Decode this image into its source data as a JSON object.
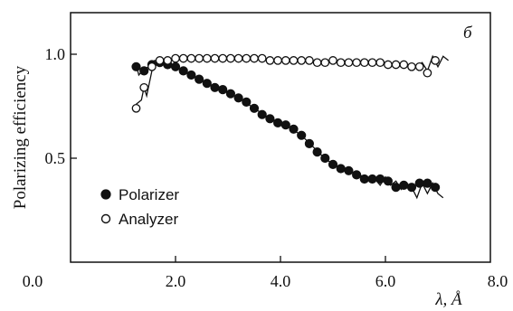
{
  "chart_data": {
    "type": "scatter",
    "panel_label": "б",
    "ylabel": "Polarizing efficiency",
    "xlabel_symbol": "λ, Å",
    "xlim": [
      0.0,
      8.0
    ],
    "ylim": [
      0.0,
      1.2
    ],
    "x_ticks": [
      0.0,
      2.0,
      4.0,
      6.0,
      8.0
    ],
    "x_tick_labels": [
      "0.0",
      "2.0",
      "4.0",
      "6.0",
      "8.0"
    ],
    "y_ticks": [
      0.5,
      1.0
    ],
    "y_tick_labels": [
      "0.5",
      "1.0"
    ],
    "legend_position": "bottom-left",
    "series": [
      {
        "name": "Polarizer",
        "marker": "filled-circle",
        "points": [
          [
            1.25,
            0.94
          ],
          [
            1.4,
            0.92
          ],
          [
            1.55,
            0.95
          ],
          [
            1.7,
            0.96
          ],
          [
            1.85,
            0.95
          ],
          [
            2.0,
            0.94
          ],
          [
            2.15,
            0.92
          ],
          [
            2.3,
            0.9
          ],
          [
            2.45,
            0.88
          ],
          [
            2.6,
            0.86
          ],
          [
            2.75,
            0.84
          ],
          [
            2.9,
            0.83
          ],
          [
            3.05,
            0.81
          ],
          [
            3.2,
            0.79
          ],
          [
            3.35,
            0.77
          ],
          [
            3.5,
            0.74
          ],
          [
            3.65,
            0.71
          ],
          [
            3.8,
            0.69
          ],
          [
            3.95,
            0.67
          ],
          [
            4.1,
            0.66
          ],
          [
            4.25,
            0.64
          ],
          [
            4.4,
            0.61
          ],
          [
            4.55,
            0.57
          ],
          [
            4.7,
            0.53
          ],
          [
            4.85,
            0.5
          ],
          [
            5.0,
            0.47
          ],
          [
            5.15,
            0.45
          ],
          [
            5.3,
            0.44
          ],
          [
            5.45,
            0.42
          ],
          [
            5.6,
            0.4
          ],
          [
            5.75,
            0.4
          ],
          [
            5.9,
            0.4
          ],
          [
            6.05,
            0.39
          ],
          [
            6.2,
            0.36
          ],
          [
            6.35,
            0.37
          ],
          [
            6.5,
            0.36
          ],
          [
            6.65,
            0.38
          ],
          [
            6.8,
            0.38
          ],
          [
            6.95,
            0.36
          ]
        ],
        "curve": [
          [
            1.25,
            0.95
          ],
          [
            1.3,
            0.9
          ],
          [
            1.4,
            0.93
          ],
          [
            1.5,
            0.94
          ],
          [
            1.6,
            0.96
          ],
          [
            1.7,
            0.96
          ],
          [
            1.85,
            0.955
          ],
          [
            2.0,
            0.94
          ],
          [
            2.3,
            0.9
          ],
          [
            2.6,
            0.86
          ],
          [
            2.9,
            0.83
          ],
          [
            3.2,
            0.79
          ],
          [
            3.5,
            0.74
          ],
          [
            3.8,
            0.69
          ],
          [
            4.1,
            0.66
          ],
          [
            4.4,
            0.61
          ],
          [
            4.6,
            0.56
          ],
          [
            4.8,
            0.51
          ],
          [
            5.0,
            0.47
          ],
          [
            5.2,
            0.45
          ],
          [
            5.4,
            0.43
          ],
          [
            5.6,
            0.41
          ],
          [
            5.8,
            0.4
          ],
          [
            5.9,
            0.37
          ],
          [
            6.0,
            0.41
          ],
          [
            6.1,
            0.37
          ],
          [
            6.2,
            0.39
          ],
          [
            6.3,
            0.35
          ],
          [
            6.4,
            0.38
          ],
          [
            6.5,
            0.36
          ],
          [
            6.6,
            0.31
          ],
          [
            6.7,
            0.38
          ],
          [
            6.8,
            0.33
          ],
          [
            6.9,
            0.38
          ],
          [
            7.0,
            0.33
          ],
          [
            7.1,
            0.31
          ]
        ]
      },
      {
        "name": "Analyzer",
        "marker": "open-circle",
        "points": [
          [
            1.25,
            0.74
          ],
          [
            1.4,
            0.84
          ],
          [
            1.55,
            0.94
          ],
          [
            1.7,
            0.97
          ],
          [
            1.85,
            0.97
          ],
          [
            2.0,
            0.98
          ],
          [
            2.15,
            0.98
          ],
          [
            2.3,
            0.98
          ],
          [
            2.45,
            0.98
          ],
          [
            2.6,
            0.98
          ],
          [
            2.75,
            0.98
          ],
          [
            2.9,
            0.98
          ],
          [
            3.05,
            0.98
          ],
          [
            3.2,
            0.98
          ],
          [
            3.35,
            0.98
          ],
          [
            3.5,
            0.98
          ],
          [
            3.65,
            0.98
          ],
          [
            3.8,
            0.97
          ],
          [
            3.95,
            0.97
          ],
          [
            4.1,
            0.97
          ],
          [
            4.25,
            0.97
          ],
          [
            4.4,
            0.97
          ],
          [
            4.55,
            0.97
          ],
          [
            4.7,
            0.96
          ],
          [
            4.85,
            0.96
          ],
          [
            5.0,
            0.97
          ],
          [
            5.15,
            0.96
          ],
          [
            5.3,
            0.96
          ],
          [
            5.45,
            0.96
          ],
          [
            5.6,
            0.96
          ],
          [
            5.75,
            0.96
          ],
          [
            5.9,
            0.96
          ],
          [
            6.05,
            0.95
          ],
          [
            6.2,
            0.95
          ],
          [
            6.35,
            0.95
          ],
          [
            6.5,
            0.94
          ],
          [
            6.65,
            0.94
          ],
          [
            6.8,
            0.91
          ],
          [
            6.95,
            0.97
          ]
        ],
        "curve": [
          [
            1.25,
            0.76
          ],
          [
            1.35,
            0.78
          ],
          [
            1.4,
            0.84
          ],
          [
            1.45,
            0.8
          ],
          [
            1.55,
            0.92
          ],
          [
            1.6,
            0.97
          ],
          [
            1.7,
            0.97
          ],
          [
            1.9,
            0.975
          ],
          [
            2.2,
            0.98
          ],
          [
            3.0,
            0.98
          ],
          [
            3.6,
            0.975
          ],
          [
            4.2,
            0.97
          ],
          [
            4.8,
            0.965
          ],
          [
            5.4,
            0.96
          ],
          [
            6.0,
            0.955
          ],
          [
            6.4,
            0.95
          ],
          [
            6.6,
            0.94
          ],
          [
            6.7,
            0.96
          ],
          [
            6.8,
            0.92
          ],
          [
            6.9,
            0.99
          ],
          [
            7.0,
            0.94
          ],
          [
            7.1,
            0.99
          ],
          [
            7.2,
            0.97
          ]
        ]
      }
    ]
  }
}
